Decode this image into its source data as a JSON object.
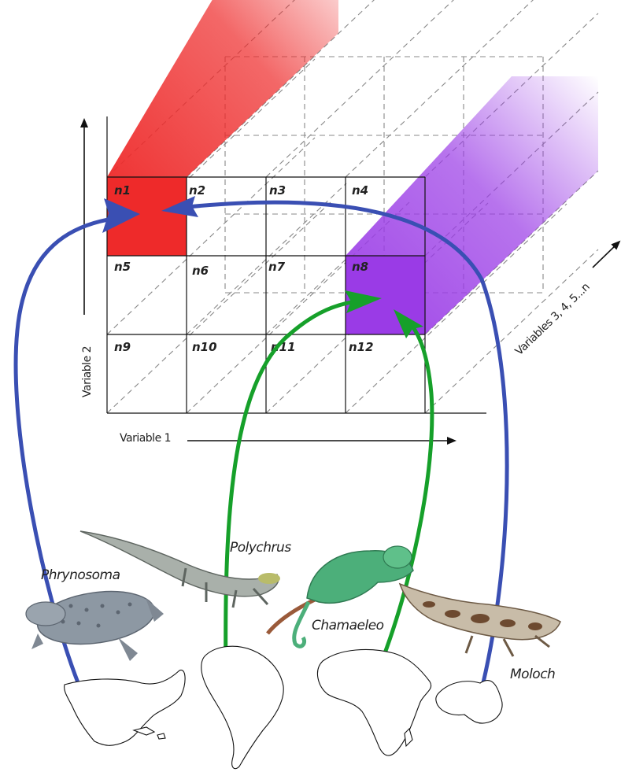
{
  "cells": [
    "n1",
    "n2",
    "n3",
    "n4",
    "n5",
    "n6",
    "n7",
    "n8",
    "n9",
    "n10",
    "n11",
    "n12"
  ],
  "axes": {
    "x": "Variable 1",
    "y": "Variable 2",
    "z": "Variables 3, 4, 5...n"
  },
  "species": [
    "Phrynosoma",
    "Polychrus",
    "Chamaeleo",
    "Moloch"
  ],
  "colors": {
    "red_niche": "#ee2a2a",
    "purple_niche": "#9a3be6",
    "convergence_blue": "#3a4fb3",
    "convergence_green": "#16a02a"
  }
}
